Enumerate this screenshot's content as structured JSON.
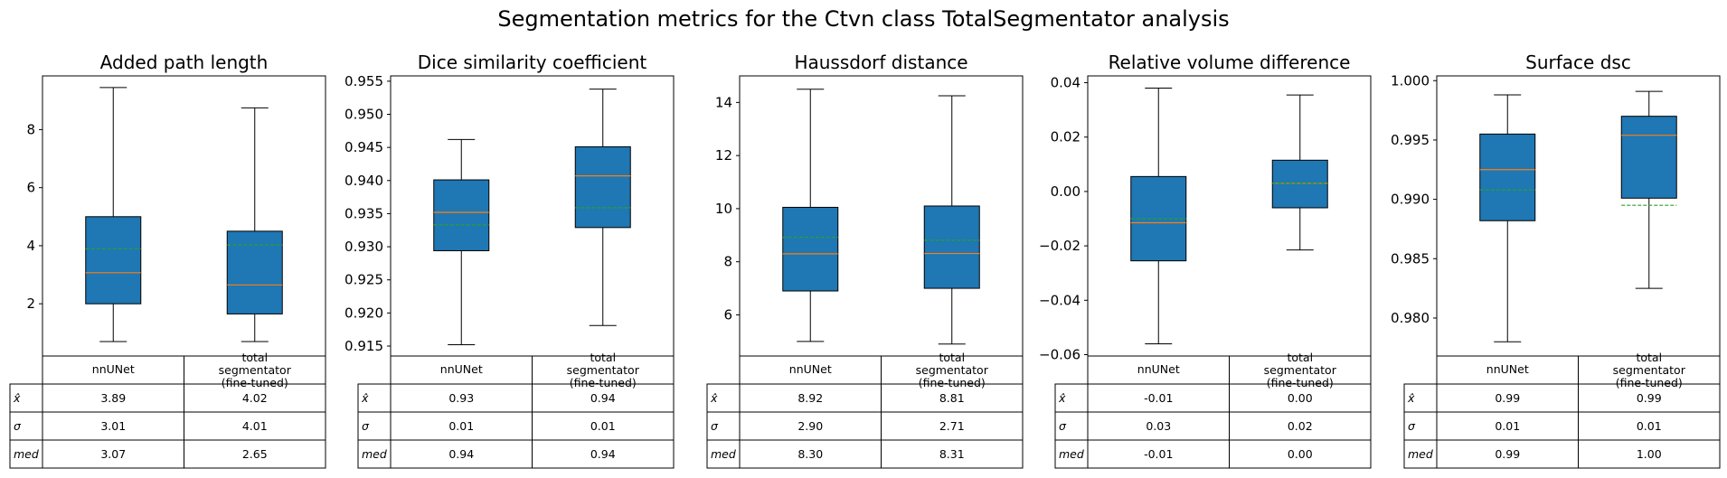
{
  "suptitle": "Segmentation metrics for the Ctvn class TotalSegmentator analysis",
  "colors": {
    "box_fill": "#1f77b4",
    "median_line": "#ff7f0e",
    "mean_line": "#2ca02c"
  },
  "table": {
    "col_labels": [
      "nnUNet",
      "total\nsegmentator\n(fine-tuned)"
    ],
    "row_labels": [
      "x̂",
      "σ",
      "med"
    ]
  },
  "chart_data": [
    {
      "type": "box",
      "title": "Added path length",
      "categories": [
        "nnUNet",
        "total segmentator (fine-tuned)"
      ],
      "ylim": [
        0.2,
        9.85
      ],
      "yticks": [
        2,
        4,
        6,
        8
      ],
      "ytick_labels": [
        "2",
        "4",
        "6",
        "8"
      ],
      "boxes": [
        {
          "whislo": 0.7,
          "q1": 2.0,
          "med": 3.07,
          "q3": 5.0,
          "whishi": 9.45,
          "mean": 3.89
        },
        {
          "whislo": 0.7,
          "q1": 1.65,
          "med": 2.65,
          "q3": 4.5,
          "whishi": 8.75,
          "mean": 4.02
        }
      ],
      "stats": [
        [
          "3.89",
          "4.02"
        ],
        [
          "3.01",
          "4.01"
        ],
        [
          "3.07",
          "2.65"
        ]
      ]
    },
    {
      "type": "box",
      "title": "Dice similarity coefficient",
      "categories": [
        "nnUNet",
        "total segmentator (fine-tuned)"
      ],
      "ylim": [
        0.9135,
        0.9558
      ],
      "yticks": [
        0.915,
        0.92,
        0.925,
        0.93,
        0.935,
        0.94,
        0.945,
        0.95,
        0.955
      ],
      "ytick_labels": [
        "0.915",
        "0.920",
        "0.925",
        "0.930",
        "0.935",
        "0.940",
        "0.945",
        "0.950",
        "0.955"
      ],
      "boxes": [
        {
          "whislo": 0.9152,
          "q1": 0.9294,
          "med": 0.9352,
          "q3": 0.9401,
          "whishi": 0.9462,
          "mean": 0.9333
        },
        {
          "whislo": 0.9181,
          "q1": 0.9329,
          "med": 0.9407,
          "q3": 0.9451,
          "whishi": 0.9538,
          "mean": 0.9359
        }
      ],
      "stats": [
        [
          "0.93",
          "0.94"
        ],
        [
          "0.01",
          "0.01"
        ],
        [
          "0.94",
          "0.94"
        ]
      ]
    },
    {
      "type": "box",
      "title": "Haussdorf distance",
      "categories": [
        "nnUNet",
        "total segmentator (fine-tuned)"
      ],
      "ylim": [
        4.45,
        15.0
      ],
      "yticks": [
        6,
        8,
        10,
        12,
        14
      ],
      "ytick_labels": [
        "6",
        "8",
        "10",
        "12",
        "14"
      ],
      "boxes": [
        {
          "whislo": 5.0,
          "q1": 6.9,
          "med": 8.3,
          "q3": 10.05,
          "whishi": 14.5,
          "mean": 8.92
        },
        {
          "whislo": 4.9,
          "q1": 7.0,
          "med": 8.31,
          "q3": 10.1,
          "whishi": 14.25,
          "mean": 8.81
        }
      ],
      "stats": [
        [
          "8.92",
          "8.81"
        ],
        [
          "2.90",
          "2.71"
        ],
        [
          "8.30",
          "8.31"
        ]
      ]
    },
    {
      "type": "box",
      "title": "Relative volume difference",
      "categories": [
        "nnUNet",
        "total segmentator (fine-tuned)"
      ],
      "ylim": [
        -0.0605,
        0.0425
      ],
      "yticks": [
        -0.06,
        -0.04,
        -0.02,
        0.0,
        0.02,
        0.04
      ],
      "ytick_labels": [
        "−0.06",
        "−0.04",
        "−0.02",
        "0.00",
        "0.02",
        "0.04"
      ],
      "boxes": [
        {
          "whislo": -0.056,
          "q1": -0.0255,
          "med": -0.0115,
          "q3": 0.0055,
          "whishi": 0.038,
          "mean": -0.01
        },
        {
          "whislo": -0.0215,
          "q1": -0.006,
          "med": 0.003,
          "q3": 0.0115,
          "whishi": 0.0355,
          "mean": 0.003
        }
      ],
      "stats": [
        [
          "-0.01",
          "0.00"
        ],
        [
          "0.03",
          "0.02"
        ],
        [
          "-0.01",
          "0.00"
        ]
      ]
    },
    {
      "type": "box",
      "title": "Surface dsc",
      "categories": [
        "nnUNet",
        "total segmentator (fine-tuned)"
      ],
      "ylim": [
        0.9768,
        1.0004
      ],
      "yticks": [
        0.98,
        0.985,
        0.99,
        0.995,
        1.0
      ],
      "ytick_labels": [
        "0.980",
        "0.985",
        "0.990",
        "0.995",
        "1.000"
      ],
      "boxes": [
        {
          "whislo": 0.978,
          "q1": 0.9882,
          "med": 0.9925,
          "q3": 0.9955,
          "whishi": 0.9988,
          "mean": 0.9908
        },
        {
          "whislo": 0.9825,
          "q1": 0.9901,
          "med": 0.9954,
          "q3": 0.997,
          "whishi": 0.9991,
          "mean": 0.9895
        }
      ],
      "stats": [
        [
          "0.99",
          "0.99"
        ],
        [
          "0.01",
          "0.01"
        ],
        [
          "0.99",
          "1.00"
        ]
      ]
    }
  ]
}
